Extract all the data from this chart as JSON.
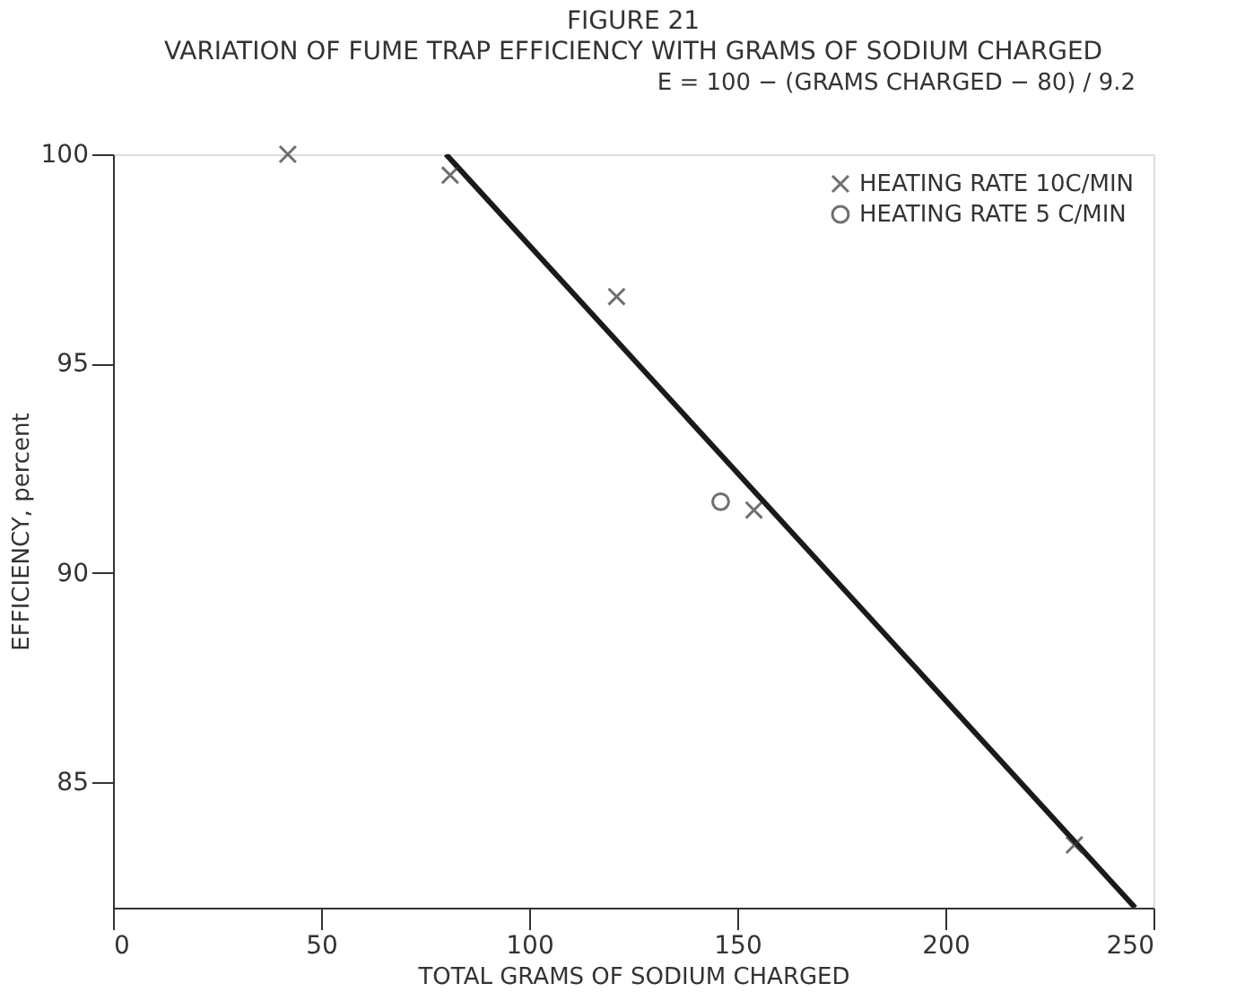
{
  "chart_data": {
    "type": "scatter",
    "title": "FIGURE 21",
    "subtitle": "VARIATION OF FUME TRAP EFFICIENCY WITH GRAMS OF SODIUM CHARGED",
    "xlabel": "TOTAL GRAMS OF SODIUM CHARGED",
    "ylabel": "EFFICIENCY, percent",
    "xlim": [
      0,
      250
    ],
    "xticks": [
      0,
      50,
      100,
      150,
      200,
      250
    ],
    "ylim": [
      82,
      100
    ],
    "yticks": [
      85,
      90,
      95,
      100
    ],
    "grid": false,
    "legend": "top right",
    "annotations": [
      "E = 100 − (GRAMS CHARGED − 80) / 9.2"
    ],
    "series": [
      {
        "type": "line",
        "color": "#1a1a1a",
        "marker": "none",
        "line_style": "solid",
        "x": [
          80,
          245.6
        ],
        "values": [
          100,
          82.0
        ]
      },
      {
        "name": "HEATING RATE 10C/MIN",
        "color": "#333333",
        "marker": "cross",
        "x": [
          42,
          81,
          121,
          154,
          231
        ],
        "values": [
          100,
          99.5,
          96.6,
          91.5,
          83.5
        ]
      },
      {
        "name": "HEATING RATE 5 C/MIN",
        "color": "#333333",
        "marker": "circle",
        "x": [
          146
        ],
        "values": [
          91.7
        ]
      }
    ]
  }
}
